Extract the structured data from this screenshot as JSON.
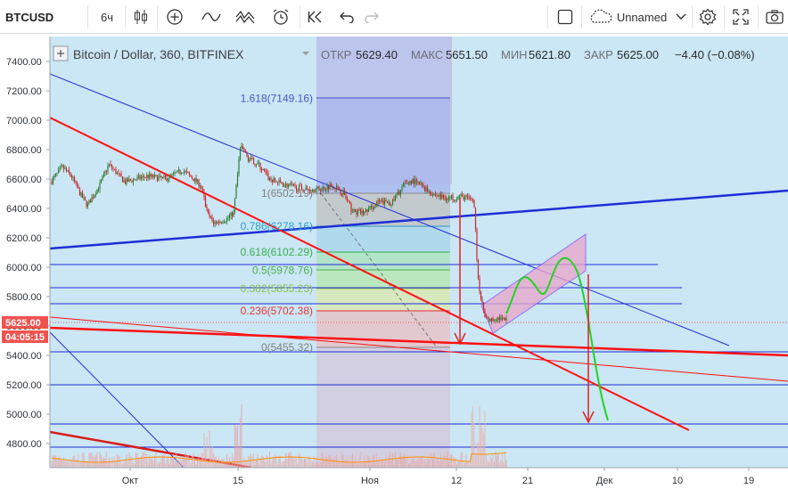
{
  "toolbar": {
    "symbol": "BTCUSD",
    "interval": "6ч",
    "layout_name": "Unnamed",
    "icons": [
      "candles-icon",
      "add-indicator-icon",
      "line-icon",
      "indicators-icon",
      "alert-icon",
      "replay-icon",
      "undo-icon",
      "redo-icon",
      "square-icon",
      "cloud-icon",
      "settings-icon",
      "fullscreen-icon",
      "snapshot-icon"
    ]
  },
  "legend": {
    "title": "Bitcoin / Dollar, 360, BITFINEX",
    "open_label": "ОТКР",
    "open": "5629.40",
    "high_label": "МАКС",
    "high": "5651.50",
    "low_label": "МИН",
    "low": "5621.80",
    "close_label": "ЗАКР",
    "close": "5625.00",
    "change": "−4.40 (−0.08%)"
  },
  "price_axis": {
    "ticks": [
      "7400.00",
      "7200.00",
      "7000.00",
      "6800.00",
      "6600.00",
      "6400.00",
      "6200.00",
      "6000.00",
      "5800.00",
      "5600.00",
      "5400.00",
      "5200.00",
      "5000.00",
      "4800.00"
    ],
    "last_price": "5625.00",
    "countdown": "04:05:15"
  },
  "time_axis": {
    "ticks": [
      "Окт",
      "15",
      "Ноя",
      "12",
      "21",
      "Дек",
      "10",
      "19"
    ]
  },
  "fib_levels": [
    {
      "label": "1.618(7149.16)",
      "value": 7149.16,
      "color": "#4a57c4"
    },
    {
      "label": "1(6502.19)",
      "value": 6502.19,
      "color": "#808080"
    },
    {
      "label": "0.786(6278.16)",
      "value": 6278.16,
      "color": "#2a9fd0"
    },
    {
      "label": "0.618(6102.29)",
      "value": 6102.29,
      "color": "#36b24c"
    },
    {
      "label": "0.5(5978.76)",
      "value": 5978.76,
      "color": "#4caf50"
    },
    {
      "label": "0.382(5855.23)",
      "value": 5855.23,
      "color": "#8bc34a"
    },
    {
      "label": "0.236(5702.38)",
      "value": 5702.38,
      "color": "#e53935"
    },
    {
      "label": "0(5455.32)",
      "value": 5455.32,
      "color": "#808080"
    }
  ],
  "colors": {
    "background": "#cbe6f4",
    "up_candle": "#2e7d32",
    "down_candle": "#c62828",
    "trend_red": "#ff1010",
    "trend_blue": "#1f2ed6",
    "last_price_badge": "#ef5350"
  }
}
